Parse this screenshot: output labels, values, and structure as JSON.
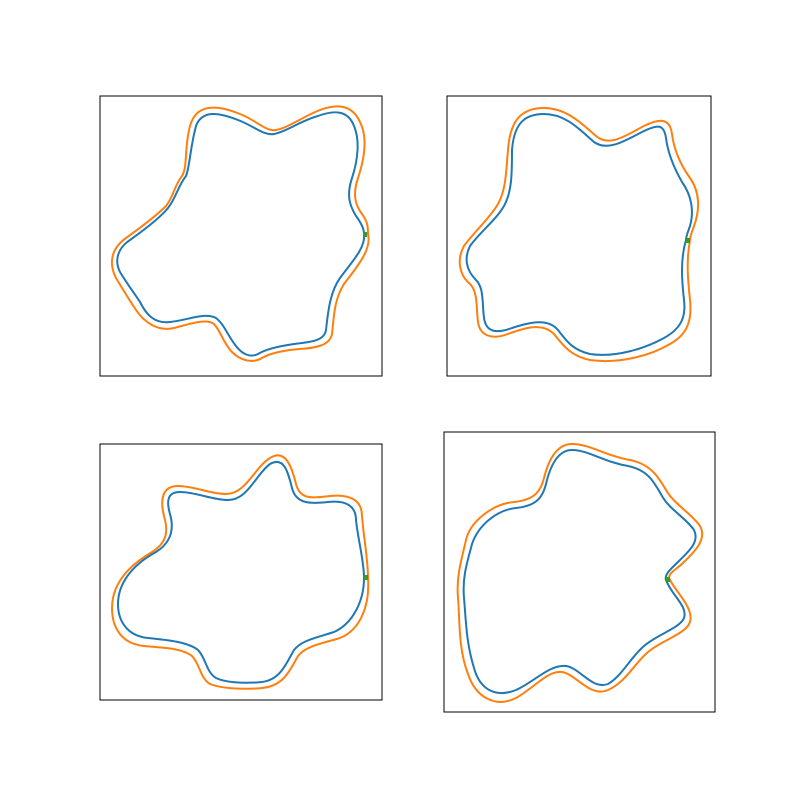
{
  "figure": {
    "colors": {
      "inner": "#1f77b4",
      "outer": "#ff7f0e",
      "marker": "#2ca02c",
      "frame": "#000000",
      "background": "#ffffff"
    },
    "panels": [
      {
        "name": "top-left"
      },
      {
        "name": "top-right"
      },
      {
        "name": "bottom-left"
      },
      {
        "name": "bottom-right"
      }
    ]
  }
}
